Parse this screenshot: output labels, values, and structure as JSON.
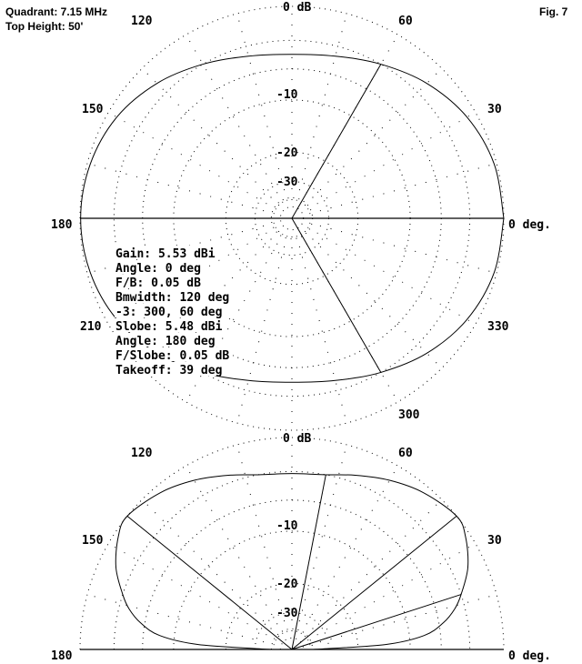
{
  "header": {
    "line1": "Quadrant: 7.15 MHz",
    "line2": "Top Height: 50'",
    "fig": "Fig. 7"
  },
  "stats": [
    "Gain: 5.53 dBi",
    "Angle: 0 deg",
    "F/B: 0.05 dB",
    "Bmwidth: 120 deg",
    "-3: 300, 60 deg",
    "Slobe: 5.48 dBi",
    "Angle: 180 deg",
    "F/Slobe: 0.05 dB",
    "Takeoff: 39 deg"
  ],
  "chart_data": [
    {
      "type": "polar-line",
      "plot": "azimuth",
      "ring_labels": [
        "0 dB",
        "-10",
        "-20",
        "-30"
      ],
      "rings_db": [
        0,
        -3,
        -6,
        -10,
        -20,
        -30,
        -40,
        -50
      ],
      "angle_labels": {
        "0": "0 deg.",
        "30": "30",
        "60": "60",
        "120": "120",
        "150": "150",
        "180": "180",
        "210": "210",
        "300": "300",
        "330": "330"
      },
      "scale": "ARRL log",
      "angles_deg": [
        0,
        15,
        30,
        45,
        60,
        75,
        90,
        105,
        120,
        135,
        150,
        165,
        180,
        195,
        210,
        225,
        240,
        255,
        270,
        285,
        300,
        315,
        330,
        345,
        360
      ],
      "relative_db": [
        0,
        -0.2,
        -0.8,
        -1.8,
        -3,
        -4.0,
        -4.4,
        -4.0,
        -3,
        -1.8,
        -0.8,
        -0.25,
        -0.05,
        -0.25,
        -0.8,
        -1.8,
        -3,
        -4.0,
        -4.4,
        -4.0,
        -3,
        -1.8,
        -0.8,
        -0.2,
        0
      ],
      "marker_angles_deg": [
        0,
        180,
        60,
        300
      ]
    },
    {
      "type": "polar-line",
      "plot": "elevation",
      "ring_labels": [
        "0 dB",
        "-10",
        "-20",
        "-30"
      ],
      "rings_db": [
        0,
        -3,
        -6,
        -10,
        -20,
        -30,
        -40,
        -50
      ],
      "angle_labels": {
        "0": "0 deg.",
        "30": "30",
        "60": "60",
        "120": "120",
        "150": "150",
        "180": "180"
      },
      "scale": "ARRL log",
      "angles_deg": [
        0,
        3,
        6,
        10,
        14,
        18,
        25,
        33,
        39,
        50,
        60,
        70,
        79,
        90,
        101,
        110,
        120,
        130,
        141,
        147,
        155,
        162,
        166,
        170,
        174,
        177,
        180
      ],
      "relative_db": [
        -40,
        -14,
        -8,
        -5.5,
        -4,
        -3,
        -1.5,
        -0.4,
        0,
        -0.6,
        -1.4,
        -2.3,
        -3,
        -3.2,
        -3,
        -2.3,
        -1.4,
        -0.6,
        0,
        -0.4,
        -1.5,
        -3,
        -4,
        -5.5,
        -8,
        -14,
        -40
      ],
      "marker_angles_deg": [
        18,
        39,
        79,
        141
      ]
    }
  ]
}
